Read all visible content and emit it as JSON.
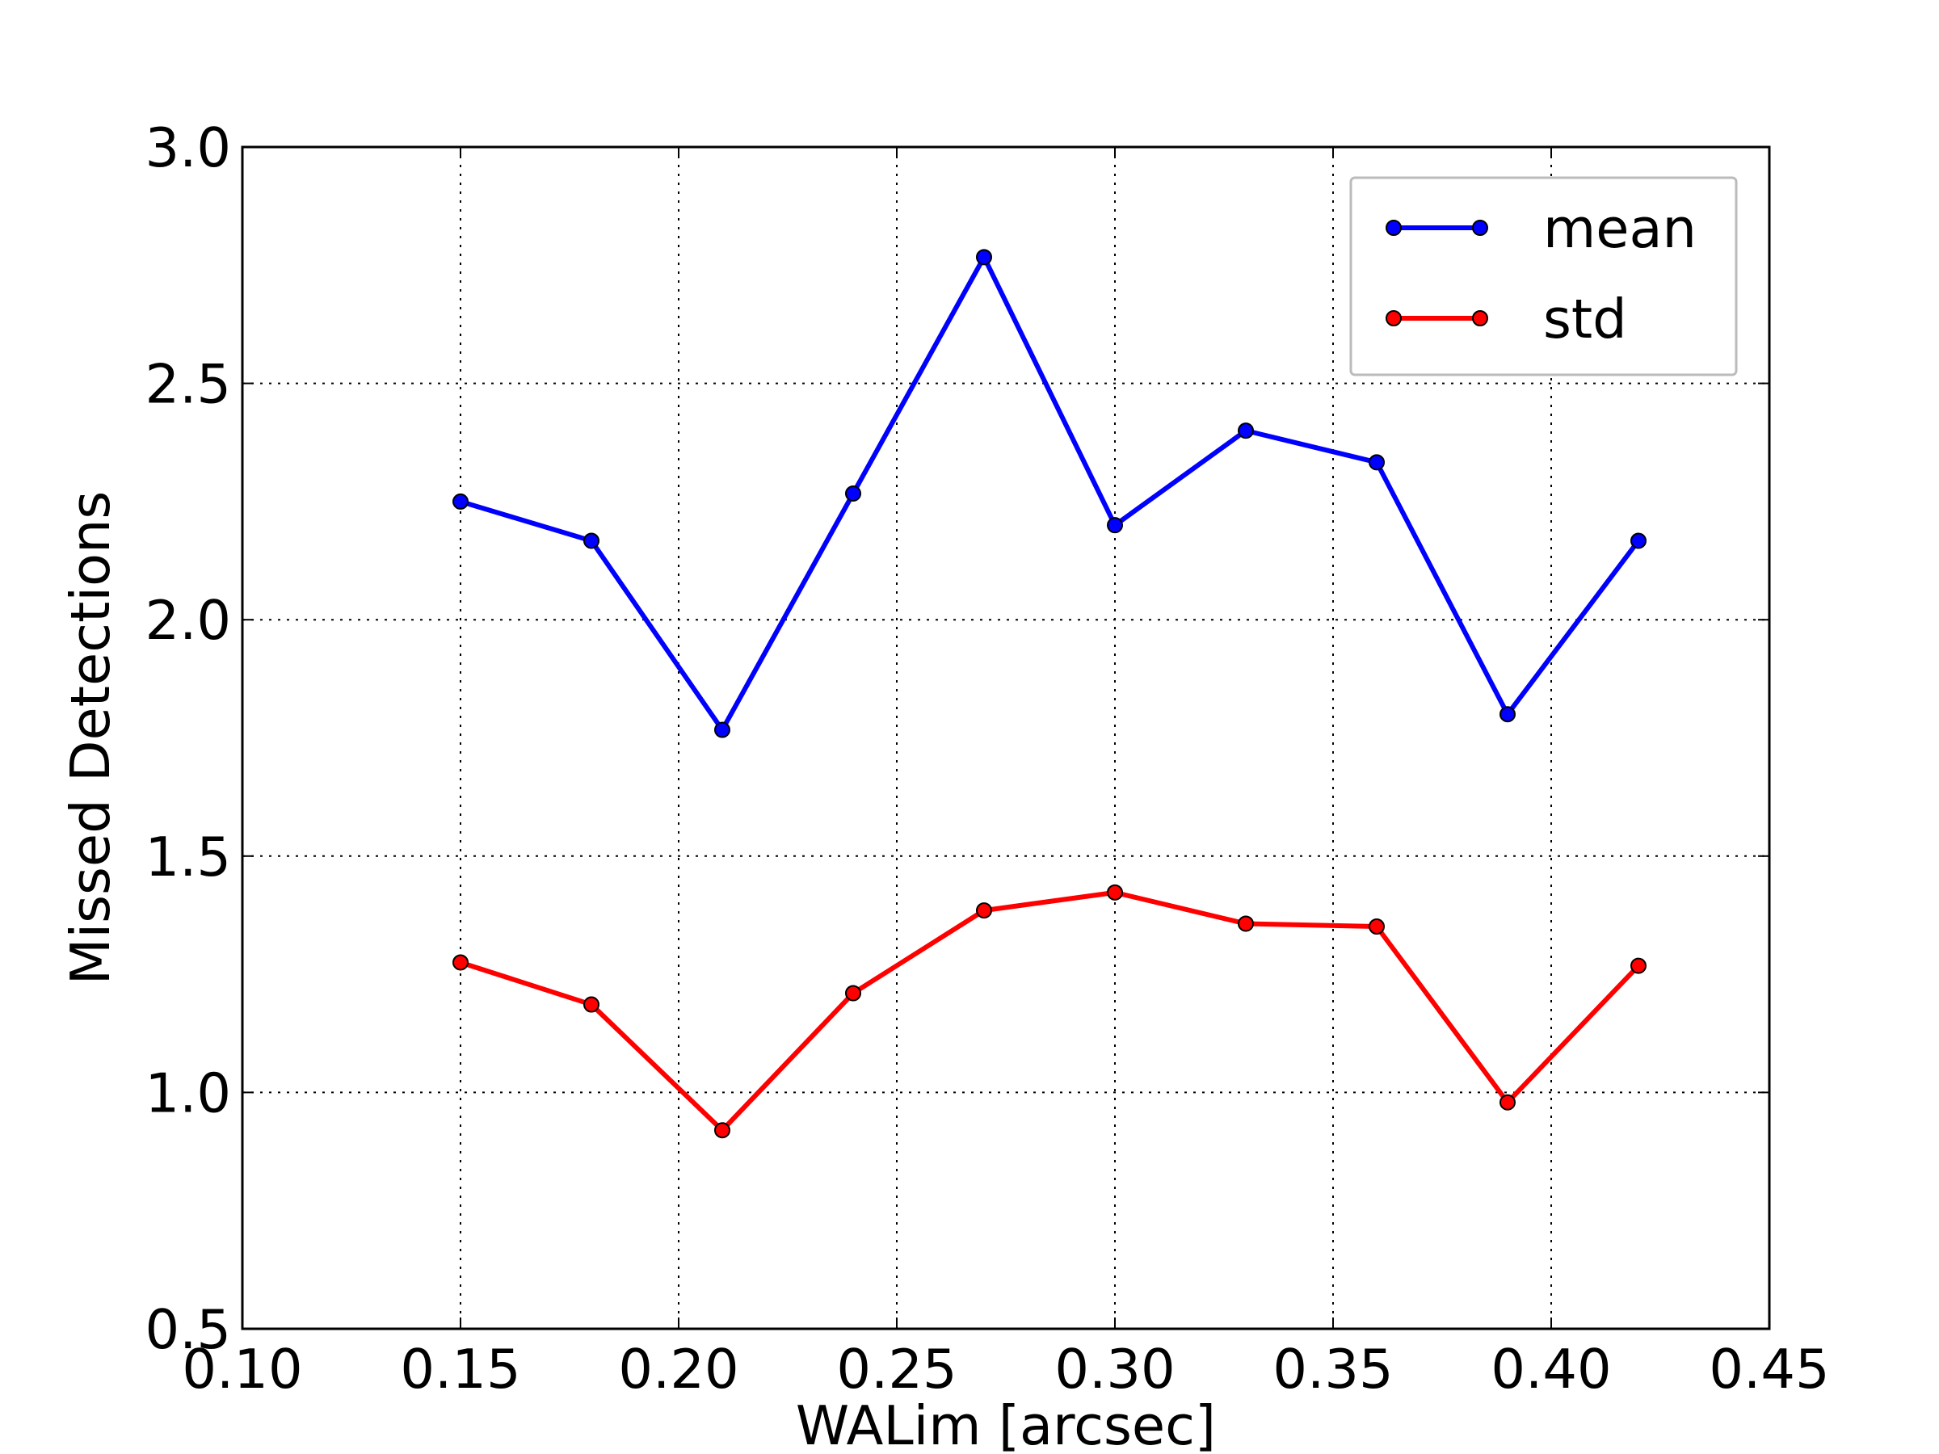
{
  "chart_data": {
    "type": "line",
    "title": "",
    "xlabel": "WALim [arcsec]",
    "ylabel": "Missed Detections",
    "xlim": [
      0.1,
      0.45
    ],
    "ylim": [
      0.5,
      3.0
    ],
    "x_ticks": [
      "0.10",
      "0.15",
      "0.20",
      "0.25",
      "0.30",
      "0.35",
      "0.40",
      "0.45"
    ],
    "y_ticks": [
      "0.5",
      "1.0",
      "1.5",
      "2.0",
      "2.5",
      "3.0"
    ],
    "grid": true,
    "legend_position": "top-right",
    "x": [
      0.15,
      0.18,
      0.21,
      0.24,
      0.27,
      0.3,
      0.33,
      0.36,
      0.39,
      0.42
    ],
    "series": [
      {
        "name": "mean",
        "color": "#0000ff",
        "values": [
          2.25,
          2.167,
          1.767,
          2.267,
          2.767,
          2.2,
          2.4,
          2.333,
          1.8,
          2.167
        ]
      },
      {
        "name": "std",
        "color": "#ff0000",
        "values": [
          1.275,
          1.186,
          0.92,
          1.21,
          1.385,
          1.423,
          1.357,
          1.351,
          0.979,
          1.268
        ]
      }
    ]
  }
}
